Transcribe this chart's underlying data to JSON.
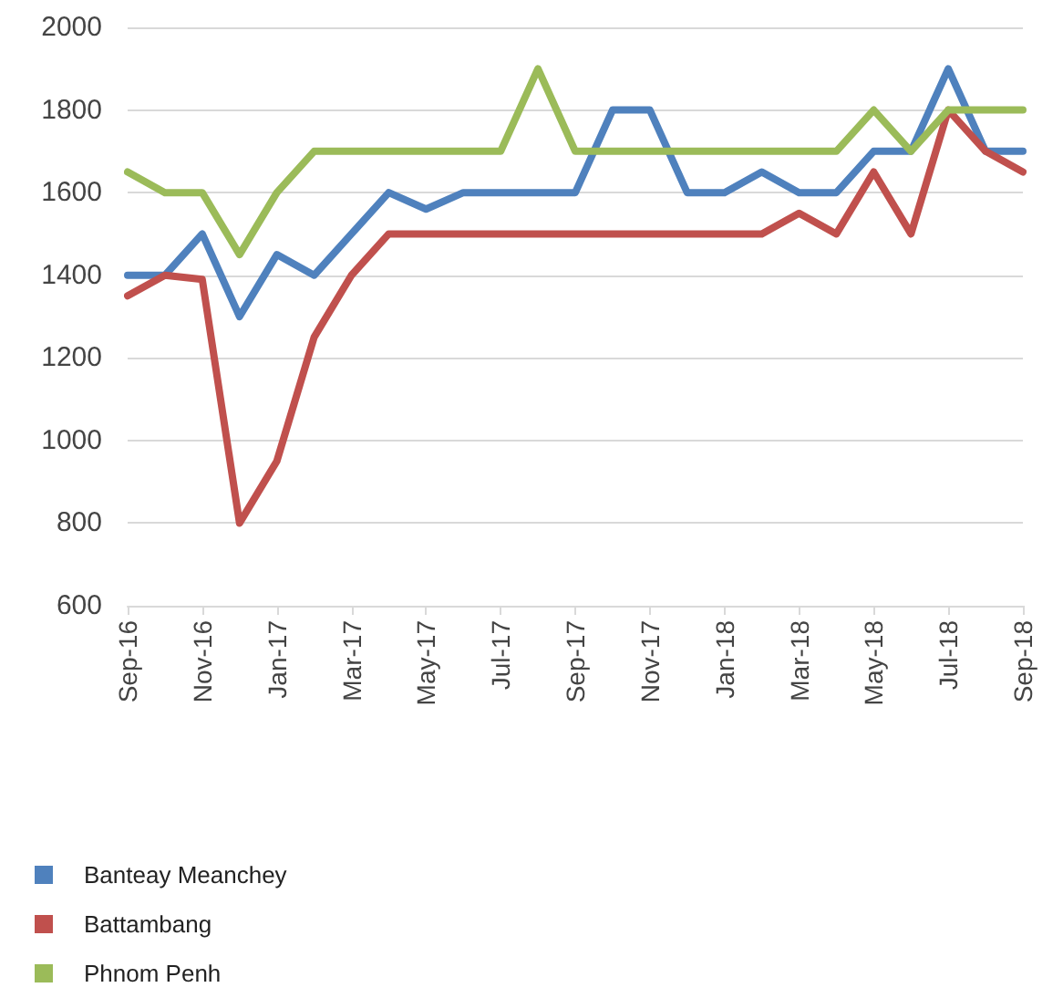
{
  "chart_data": {
    "type": "line",
    "categories": [
      "Sep-16",
      null,
      "Nov-16",
      null,
      "Jan-17",
      null,
      "Mar-17",
      null,
      "May-17",
      null,
      "Jul-17",
      null,
      "Sep-17",
      null,
      "Nov-17",
      null,
      "Jan-18",
      null,
      "Mar-18",
      null,
      "May-18",
      null,
      "Jul-18",
      null,
      "Sep-18"
    ],
    "series": [
      {
        "name": "Banteay Meanchey",
        "color": "#4f81bd",
        "values": [
          1400,
          1400,
          1500,
          1300,
          1450,
          1400,
          1500,
          1600,
          1560,
          1600,
          1600,
          1600,
          1600,
          1800,
          1800,
          1600,
          1600,
          1650,
          1600,
          1600,
          1700,
          1700,
          1900,
          1700,
          1700
        ]
      },
      {
        "name": "Battambang",
        "color": "#c0504d",
        "values": [
          1350,
          1400,
          1390,
          800,
          950,
          1250,
          1400,
          1500,
          1500,
          1500,
          1500,
          1500,
          1500,
          1500,
          1500,
          1500,
          1500,
          1500,
          1550,
          1500,
          1650,
          1500,
          1800,
          1700,
          1650
        ]
      },
      {
        "name": "Phnom Penh",
        "color": "#9bbb59",
        "values": [
          1650,
          1600,
          1600,
          1450,
          1600,
          1700,
          1700,
          1700,
          1700,
          1700,
          1700,
          1900,
          1700,
          1700,
          1700,
          1700,
          1700,
          1700,
          1700,
          1700,
          1800,
          1700,
          1800,
          1800,
          1800
        ]
      }
    ],
    "ylim": [
      600,
      2000
    ],
    "yticks": [
      600,
      800,
      1000,
      1200,
      1400,
      1600,
      1800,
      2000
    ],
    "grid": "y",
    "legend": "bottom",
    "marker": "none",
    "line_style": "solid"
  }
}
